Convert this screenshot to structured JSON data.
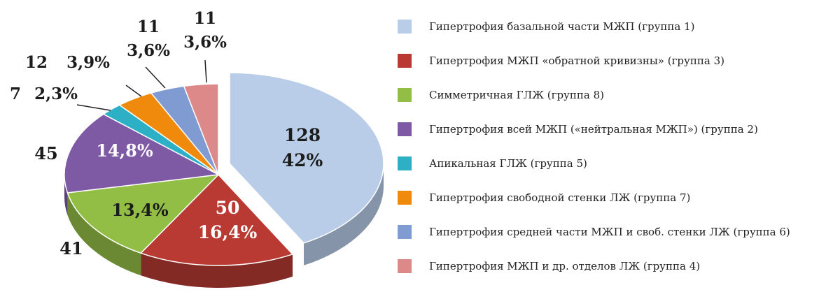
{
  "chart_data": {
    "type": "pie",
    "title": "",
    "legend_position": "right",
    "slices": [
      {
        "name": "Гипертрофия базальной части МЖП (группа 1)",
        "count": "128",
        "percent": "42%",
        "value": 42,
        "color": "#B9CDE9"
      },
      {
        "name": "Гипертрофия МЖП «обратной кривизны» (группа 3)",
        "count": "50",
        "percent": "16,4%",
        "value": 16.4,
        "color": "#B83A33"
      },
      {
        "name": "Симметричная ГЛЖ (группа 8)",
        "count": "41",
        "percent": "13,4%",
        "value": 13.4,
        "color": "#93BE46"
      },
      {
        "name": "Гипертрофия всей МЖП («нейтральная МЖП») (группа 2)",
        "count": "45",
        "percent": "14,8%",
        "value": 14.8,
        "color": "#7E5AA5"
      },
      {
        "name": "Апикальная ГЛЖ (группа 5)",
        "count": "7",
        "percent": "2,3%",
        "value": 2.3,
        "color": "#2DAFC6"
      },
      {
        "name": "Гипертрофия свободной стенки ЛЖ (группа 7)",
        "count": "12",
        "percent": "3,9%",
        "value": 3.9,
        "color": "#EF8A0C"
      },
      {
        "name": "Гипертрофия средней части МЖП и своб. стенки ЛЖ (группа 6)",
        "count": "11",
        "percent": "3,6%",
        "value": 3.6,
        "color": "#809BD2"
      },
      {
        "name": "Гипертрофия МЖП и др. отделов ЛЖ (группа 4)",
        "count": "11",
        "percent": "3,6%",
        "value": 3.6,
        "color": "#DE8989"
      }
    ]
  }
}
